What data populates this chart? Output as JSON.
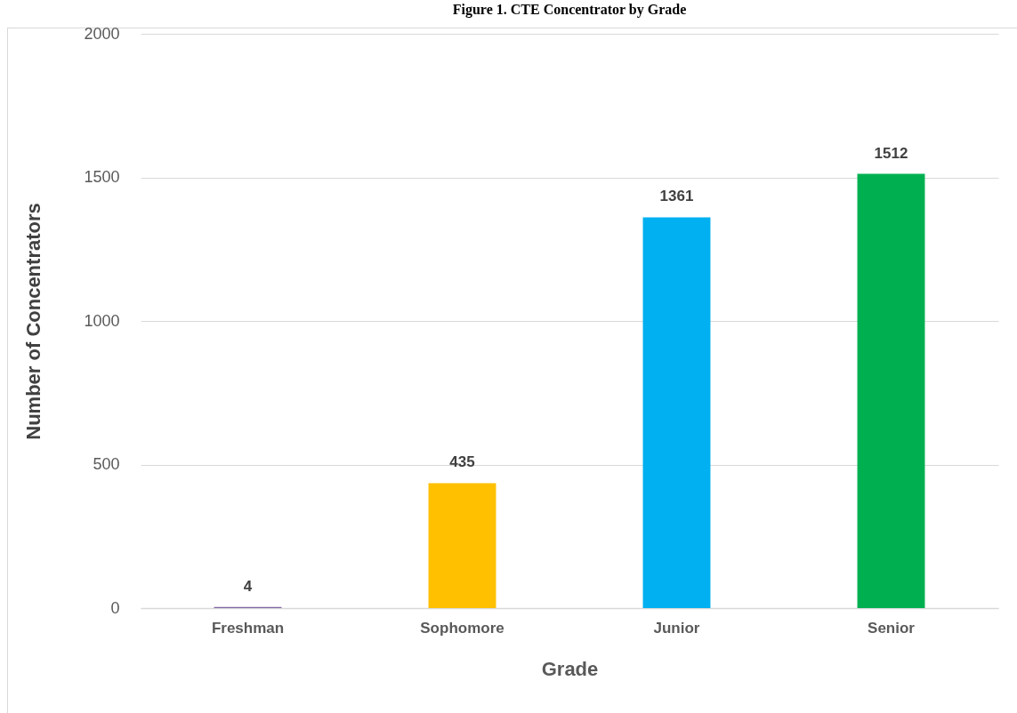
{
  "chart_data": {
    "type": "bar",
    "title": "Figure 1. CTE Concentrator by Grade",
    "xlabel": "Grade",
    "ylabel": "Number of Concentrators",
    "categories": [
      "Freshman",
      "Sophomore",
      "Junior",
      "Senior"
    ],
    "values": [
      4,
      435,
      1361,
      1512
    ],
    "colors": [
      "#8064a2",
      "#ffc000",
      "#00b0f0",
      "#00b050"
    ],
    "ylim": [
      0,
      2000
    ],
    "yticks": [
      0,
      500,
      1000,
      1500,
      2000
    ],
    "grid": "y",
    "data_labels": true,
    "legend": false
  }
}
